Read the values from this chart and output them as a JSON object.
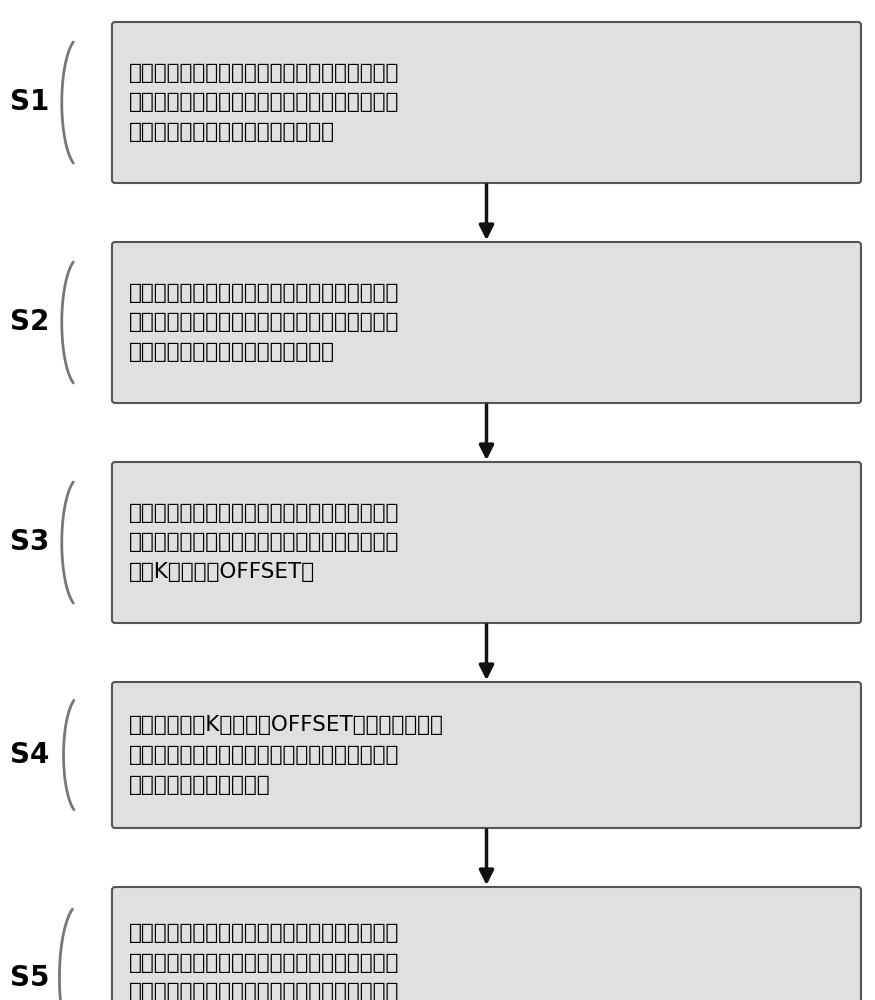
{
  "steps": [
    {
      "label": "S1",
      "text": "通过与活套小车连接的钓丝绳卷扬机上设置的绝\n对値编码器计算活套区域内的带锂理论长度，获\n得活套区域内的带锂理论长度曲线；",
      "lines": 3
    },
    {
      "label": "S2",
      "text": "通过入口张力辗上设置的增量式编码器计算焊缝\n进入活套区域内的带锂实际长度，并获得焊缝进\n入活套区域内的带锂实际长度曲线；",
      "lines": 3
    },
    {
      "label": "S3",
      "text": "计算得到活套区域内的带锂理论长度曲线与焊缝\n进入活套区域内的带锂实际长度曲线之间的比例\n系数K和偏移量OFFSET；",
      "lines": 3
    },
    {
      "label": "S4",
      "text": "通过比例系数K、偏移量OFFSET和绝对値编码器\n计算的活套区域内的带锂理论长度计算得到活套\n区域内的带锂实际总长；",
      "lines": 3
    },
    {
      "label": "S5",
      "text": "将入口张力辗上设置的增量式编码器计算的焊缝\n进入活套区域内的带锂实际长度与活套区域内的\n带锂实际总长进行比较，判断活套区域内焊缝的\n实际位置，实现活套区域内焊缝的跟踪。",
      "lines": 4
    }
  ],
  "bg_color": "#ffffff",
  "box_fill": "#e0e0e0",
  "box_edge": "#555555",
  "text_color": "#000000",
  "label_color": "#000000",
  "arrow_color": "#111111"
}
